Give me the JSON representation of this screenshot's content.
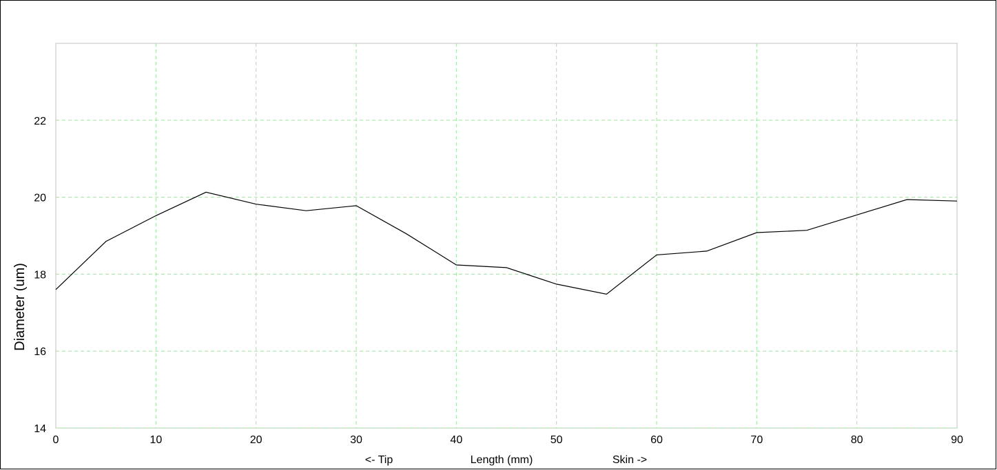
{
  "chart_data": {
    "type": "line",
    "title": "",
    "xlabel": "Length (mm)",
    "xlabel_left": "<- Tip",
    "xlabel_right": "Skin ->",
    "ylabel": "Diameter (um)",
    "xlim": [
      0,
      90
    ],
    "ylim": [
      14,
      24
    ],
    "xticks": [
      0,
      10,
      20,
      30,
      40,
      50,
      60,
      70,
      80,
      90
    ],
    "yticks": [
      14,
      16,
      18,
      20,
      22
    ],
    "grid": true,
    "colors": {
      "line": "#000000",
      "grid": "#99e699",
      "frame": "#c0c0c0"
    },
    "series": [
      {
        "x": [
          0,
          5,
          10,
          15,
          20,
          25,
          30,
          35,
          40,
          45,
          50,
          55,
          60,
          65,
          70,
          75,
          80,
          85,
          90
        ],
        "values": [
          17.6,
          18.85,
          19.52,
          20.13,
          19.82,
          19.65,
          19.78,
          19.05,
          18.24,
          18.17,
          17.74,
          17.48,
          18.5,
          18.6,
          19.08,
          19.14,
          19.54,
          19.94,
          19.9
        ]
      }
    ]
  }
}
